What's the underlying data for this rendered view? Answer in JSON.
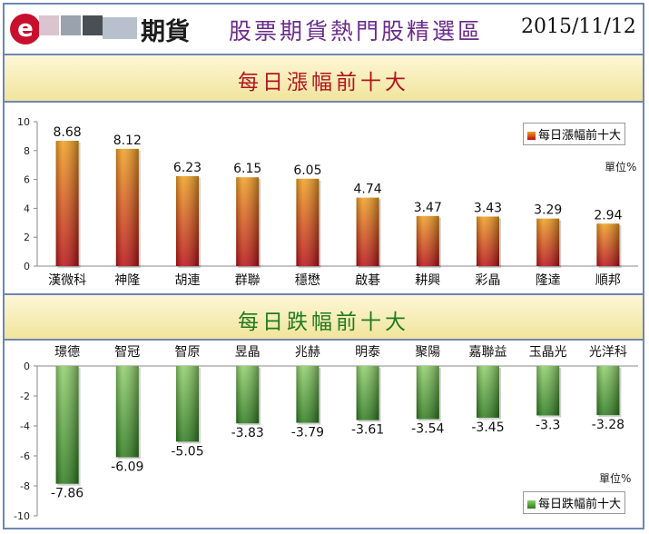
{
  "header": {
    "brand": "期貨",
    "title": "股票期貨熱門股精選區",
    "date": "2015/11/12"
  },
  "colors": {
    "frame": "#6d86b6",
    "gainer_top": "#f0a020",
    "gainer_bottom": "#b80e14",
    "loser_top": "#8fcf6a",
    "loser_bottom": "#2c7a1c",
    "gainer_title": "#b3131f",
    "loser_title": "#1f7b1f"
  },
  "sections": {
    "gainers_title": "每日漲幅前十大",
    "losers_title": "每日跌幅前十大"
  },
  "chart_data": [
    {
      "type": "bar",
      "legend": "每日漲幅前十大",
      "legend_position": "top-right",
      "unit": "單位%",
      "categories": [
        "漢微科",
        "神隆",
        "胡連",
        "群聯",
        "穩懋",
        "啟碁",
        "耕興",
        "彩晶",
        "隆達",
        "順邦"
      ],
      "values": [
        8.68,
        8.12,
        6.23,
        6.15,
        6.05,
        4.74,
        3.47,
        3.43,
        3.29,
        2.94
      ],
      "value_labels": [
        "8.68",
        "8.12",
        "6.23",
        "6.15",
        "6.05",
        "4.74",
        "3.47",
        "3.43",
        "3.29",
        "2.94"
      ],
      "ylim": [
        0,
        10
      ],
      "yticks": [
        0,
        2,
        4,
        6,
        8,
        10
      ],
      "ytick_labels": [
        "0",
        "2",
        "4",
        "6",
        "8",
        "10"
      ],
      "grid": false
    },
    {
      "type": "bar",
      "legend": "每日跌幅前十大",
      "legend_position": "bottom-right",
      "unit": "單位%",
      "categories": [
        "璟德",
        "智冠",
        "智原",
        "昱晶",
        "兆赫",
        "明泰",
        "聚陽",
        "嘉聯益",
        "玉晶光",
        "光洋科"
      ],
      "values": [
        -7.86,
        -6.09,
        -5.05,
        -3.83,
        -3.79,
        -3.61,
        -3.54,
        -3.45,
        -3.3,
        -3.28
      ],
      "value_labels": [
        "-7.86",
        "-6.09",
        "-5.05",
        "-3.83",
        "-3.79",
        "-3.61",
        "-3.54",
        "-3.45",
        "-3.3",
        "-3.28"
      ],
      "ylim": [
        -10,
        0
      ],
      "yticks": [
        0,
        -2,
        -4,
        -6,
        -8,
        -10
      ],
      "ytick_labels": [
        "0",
        "-2",
        "-4",
        "-6",
        "-8",
        "-10"
      ],
      "grid": false
    }
  ]
}
